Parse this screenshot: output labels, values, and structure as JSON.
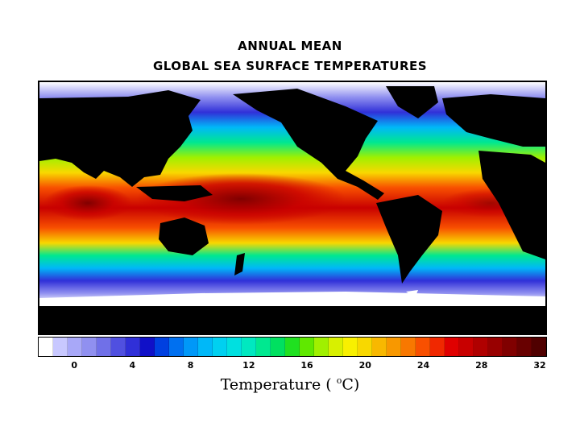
{
  "title_line1": "ANNUAL MEAN",
  "title_line2": "GLOBAL SEA SURFACE TEMPERATURES",
  "legend": {
    "label_prefix": "Temperature ( ",
    "label_sup": "o",
    "label_suffix": "C)",
    "ticks": [
      "0",
      "4",
      "8",
      "12",
      "16",
      "20",
      "24",
      "28",
      "32"
    ],
    "colors": [
      "#ffffff",
      "#c8c8ff",
      "#a8a8f8",
      "#9090f0",
      "#7070e8",
      "#5050e0",
      "#3030d8",
      "#1010c8",
      "#0040e0",
      "#0070f0",
      "#0098f8",
      "#00b8f8",
      "#00d0f0",
      "#00e0e0",
      "#00e8c0",
      "#00e890",
      "#00e060",
      "#20e020",
      "#60e800",
      "#a0f000",
      "#d8f000",
      "#f8f000",
      "#f8d800",
      "#f8b800",
      "#f89800",
      "#f87800",
      "#f85000",
      "#f02800",
      "#e00000",
      "#c80000",
      "#b00000",
      "#980000",
      "#800000",
      "#680000",
      "#500000"
    ]
  },
  "map": {
    "land_color": "#000000",
    "ice_color": "#ffffff",
    "band_colors": {
      "polar": "#ffffff",
      "sub_polar": "#9090f0",
      "cold": "#3030d8",
      "cool": "#00b8f8",
      "mild": "#00e890",
      "temperate": "#a0f000",
      "warm": "#f8d800",
      "hot": "#f85000",
      "very_hot": "#c80000",
      "warm_pool": "#800000"
    }
  }
}
